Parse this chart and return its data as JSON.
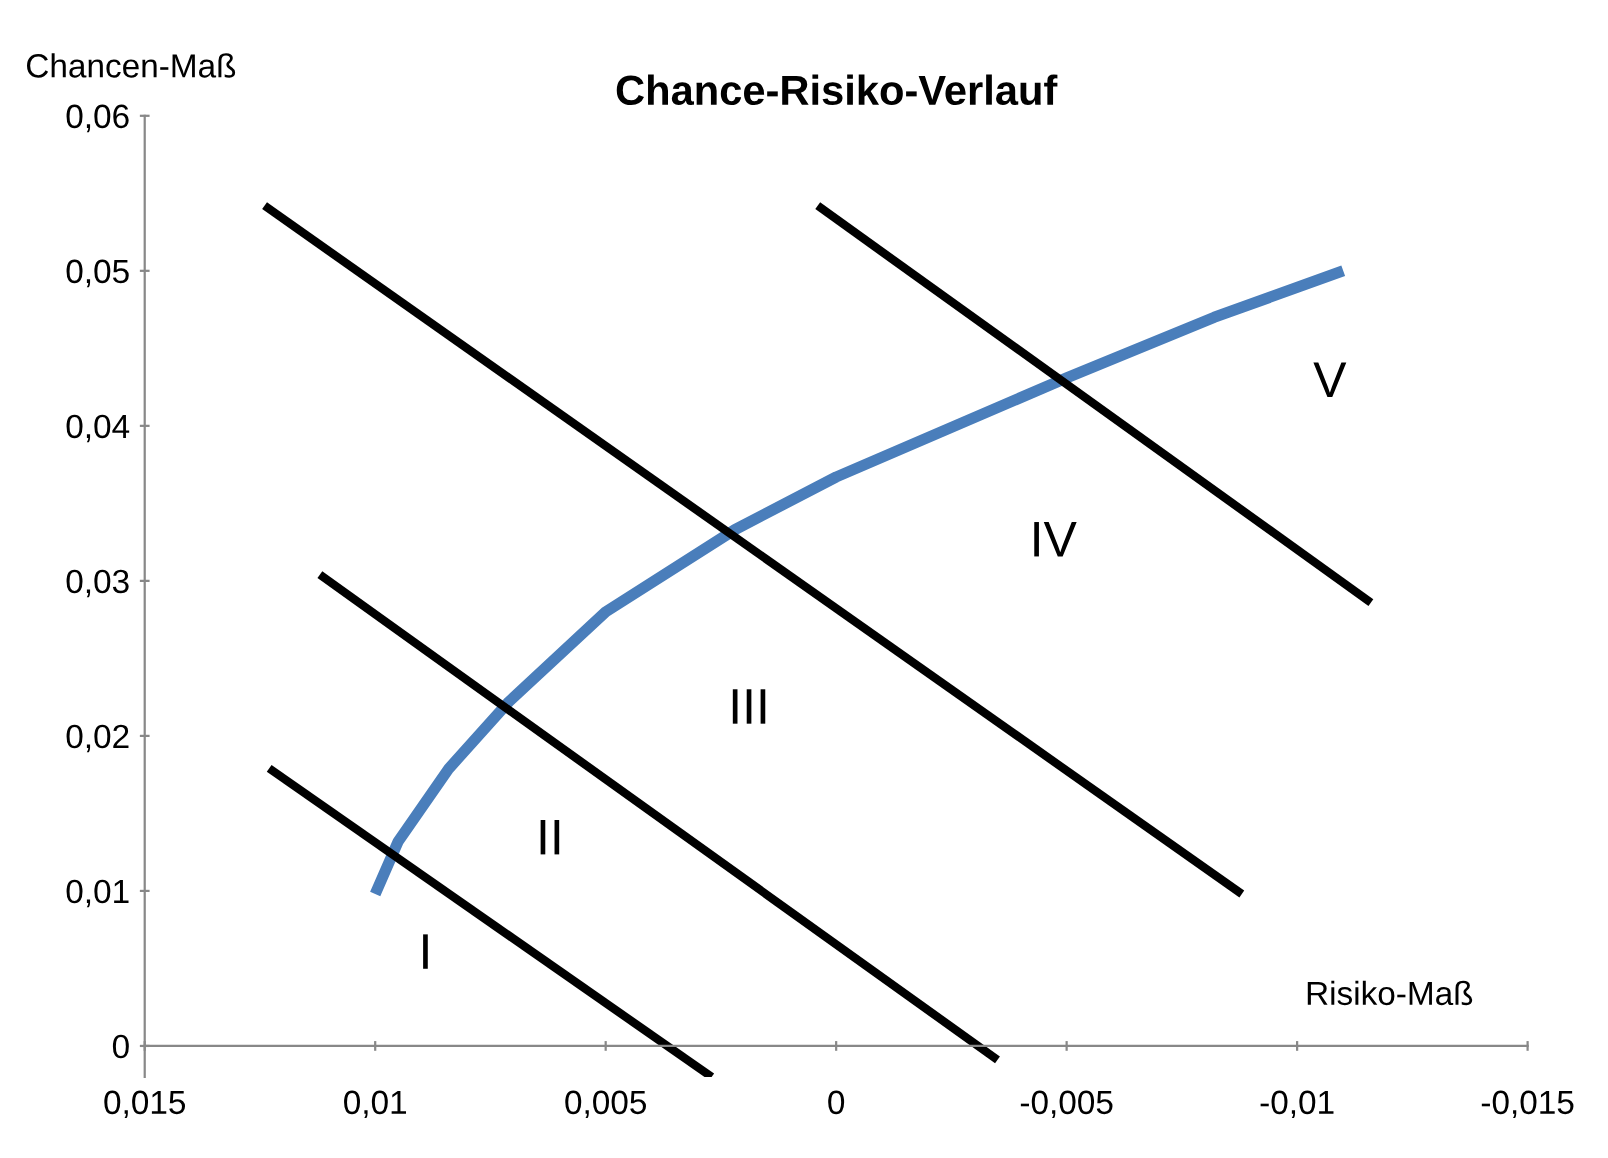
{
  "chart_data": {
    "type": "line",
    "title": "Chance-Risiko-Verlauf",
    "xlabel": "Risiko-Maß",
    "ylabel": "Chancen-Maß",
    "xlim": [
      0.015,
      -0.015
    ],
    "ylim": [
      -0.002,
      0.06
    ],
    "xticks": [
      {
        "value": 0.015,
        "label": "0,015"
      },
      {
        "value": 0.01,
        "label": "0,01"
      },
      {
        "value": 0.005,
        "label": "0,005"
      },
      {
        "value": 0,
        "label": "0"
      },
      {
        "value": -0.005,
        "label": "-0,005"
      },
      {
        "value": -0.01,
        "label": "-0,01"
      },
      {
        "value": -0.015,
        "label": "-0,015"
      }
    ],
    "yticks": [
      {
        "value": 0,
        "label": "0"
      },
      {
        "value": 0.01,
        "label": "0,01"
      },
      {
        "value": 0.02,
        "label": "0,02"
      },
      {
        "value": 0.03,
        "label": "0,03"
      },
      {
        "value": 0.04,
        "label": "0,04"
      },
      {
        "value": 0.05,
        "label": "0,05"
      },
      {
        "value": 0.06,
        "label": "0,06"
      }
    ],
    "grid": false,
    "series": [
      {
        "color": "#4a7ebb",
        "x": [
          0.01,
          0.0095,
          0.0084,
          0.0071,
          0.005,
          0.0022,
          0,
          -0.005,
          -0.0082,
          -0.011
        ],
        "values": [
          0.0098,
          0.0132,
          0.0179,
          0.0222,
          0.028,
          0.0333,
          0.0367,
          0.0431,
          0.047,
          0.05
        ]
      },
      {
        "color": "#000000",
        "x": [
          0.0123,
          0.0027
        ],
        "values": [
          0.0179,
          -0.002
        ]
      },
      {
        "color": "#000000",
        "x": [
          0.0112,
          -0.0035
        ],
        "values": [
          0.0304,
          -0.0009
        ]
      },
      {
        "color": "#000000",
        "x": [
          0.0124,
          -0.0088
        ],
        "values": [
          0.0542,
          0.0098
        ]
      },
      {
        "color": "#000000",
        "x": [
          0.0004,
          -0.0116
        ],
        "values": [
          0.0542,
          0.0286
        ]
      }
    ],
    "annotations": [
      "I",
      "II",
      "III",
      "IV",
      "V"
    ]
  }
}
